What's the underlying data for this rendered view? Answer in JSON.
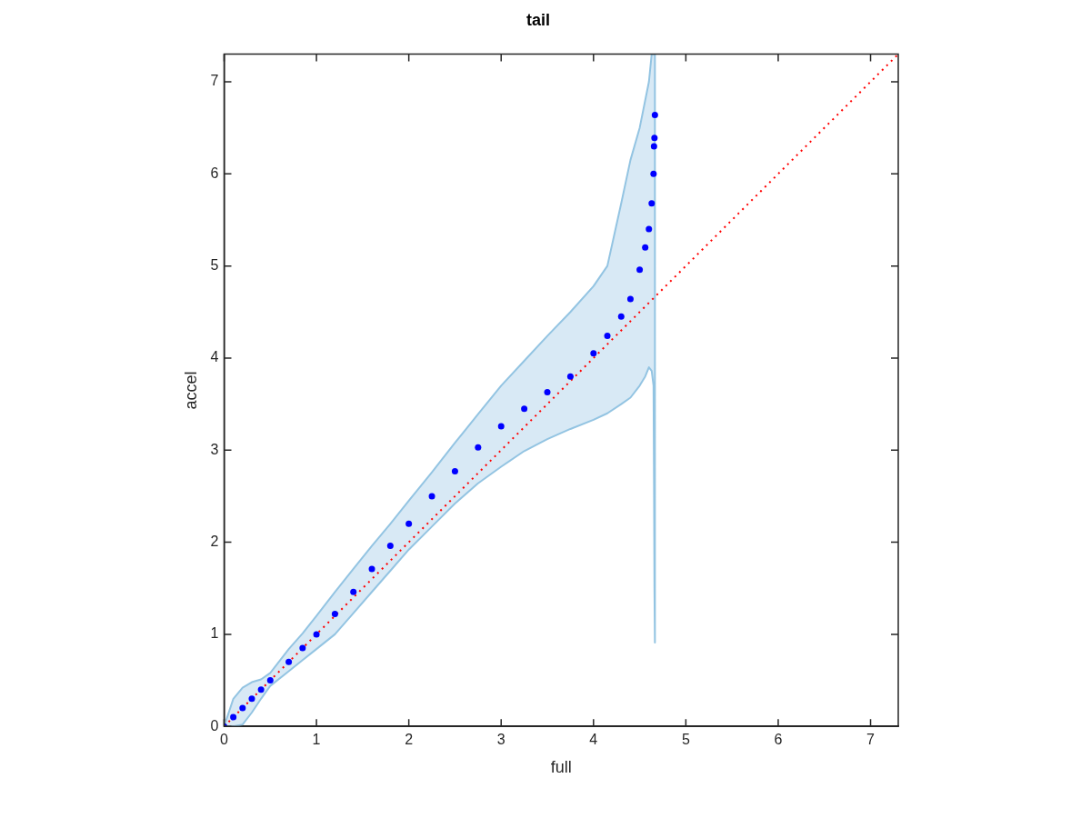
{
  "chart_data": {
    "type": "scatter",
    "title": "tail",
    "xlabel": "full",
    "ylabel": "accel",
    "xlim": [
      0,
      7.3
    ],
    "ylim": [
      0,
      7.3
    ],
    "xticks": [
      0,
      1,
      2,
      3,
      4,
      5,
      6,
      7
    ],
    "yticks": [
      0,
      1,
      2,
      3,
      4,
      5,
      6,
      7
    ],
    "grid": false,
    "legend": false,
    "marker": "circle",
    "series": [
      {
        "color": "#0000ff",
        "x": [
          0,
          0.1,
          0.2,
          0.3,
          0.4,
          0.5,
          0.7,
          0.85,
          1.0,
          1.2,
          1.4,
          1.6,
          1.8,
          2.0,
          2.25,
          2.5,
          2.75,
          3.0,
          3.25,
          3.5,
          3.75,
          4.0,
          4.15,
          4.3,
          4.4,
          4.5,
          4.56,
          4.6,
          4.63,
          4.65,
          4.655,
          4.66,
          4.665
        ],
        "values": [
          0,
          0.1,
          0.2,
          0.3,
          0.4,
          0.5,
          0.7,
          0.85,
          1.0,
          1.22,
          1.46,
          1.71,
          1.96,
          2.2,
          2.5,
          2.77,
          3.03,
          3.26,
          3.45,
          3.63,
          3.8,
          4.05,
          4.24,
          4.45,
          4.64,
          4.96,
          5.2,
          5.4,
          5.68,
          6.0,
          6.3,
          6.39,
          6.64
        ],
        "upper": [
          0,
          0.3,
          0.42,
          0.48,
          0.51,
          0.58,
          0.84,
          1.01,
          1.2,
          1.46,
          1.71,
          1.96,
          2.2,
          2.45,
          2.76,
          3.08,
          3.39,
          3.7,
          3.97,
          4.24,
          4.5,
          4.78,
          5.0,
          5.68,
          6.15,
          6.5,
          6.8,
          7.0,
          7.3,
          7.3,
          7.3,
          7.3,
          7.3
        ],
        "lower": [
          0,
          0,
          0.02,
          0.15,
          0.3,
          0.44,
          0.6,
          0.72,
          0.84,
          1.0,
          1.23,
          1.46,
          1.69,
          1.92,
          2.17,
          2.42,
          2.64,
          2.82,
          2.99,
          3.12,
          3.23,
          3.33,
          3.4,
          3.5,
          3.57,
          3.7,
          3.8,
          3.9,
          3.86,
          3.7,
          2.7,
          1.5,
          0.91
        ]
      },
      {
        "type": "line",
        "color": "#ff0000",
        "line_style": "dotted",
        "marker": "none",
        "x": [
          0,
          7.3
        ],
        "values": [
          0,
          7.3
        ]
      }
    ]
  }
}
